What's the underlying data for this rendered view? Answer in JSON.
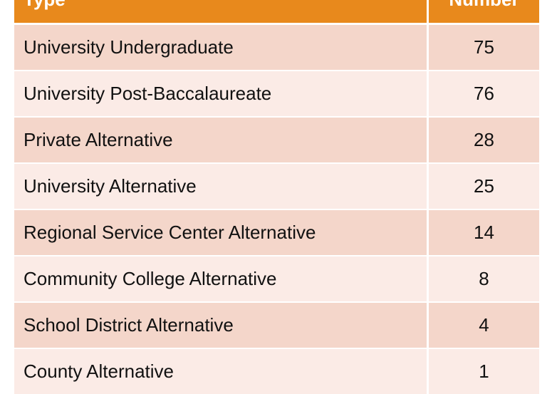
{
  "table": {
    "columns": [
      "Type",
      "Number"
    ],
    "rows": [
      [
        "University Undergraduate",
        "75"
      ],
      [
        "University Post-Baccalaureate",
        "76"
      ],
      [
        "Private Alternative",
        "28"
      ],
      [
        "University Alternative",
        "25"
      ],
      [
        "Regional Service Center Alternative",
        "14"
      ],
      [
        "Community College Alternative",
        "8"
      ],
      [
        "School District Alternative",
        "4"
      ],
      [
        "County Alternative",
        "1"
      ]
    ]
  }
}
